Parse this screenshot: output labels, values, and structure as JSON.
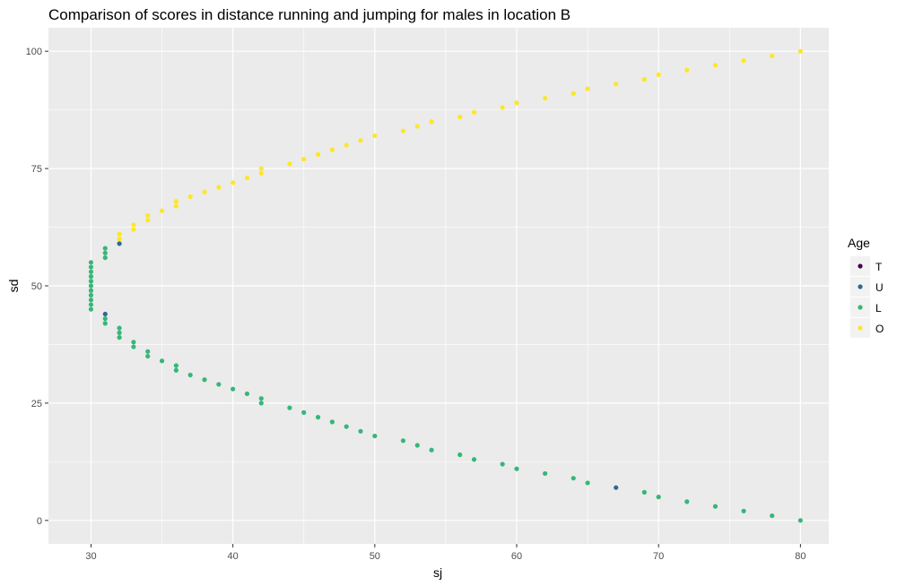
{
  "chart_data": {
    "type": "scatter",
    "title": "Comparison of scores in distance running and jumping for males in location B",
    "xlabel": "sj",
    "ylabel": "sd",
    "xlim": [
      27,
      82
    ],
    "ylim": [
      -5,
      105
    ],
    "x_ticks": [
      30,
      40,
      50,
      60,
      70,
      80
    ],
    "y_ticks": [
      0,
      25,
      50,
      75,
      100
    ],
    "grid": true,
    "legend": {
      "title": "Age",
      "position": "right",
      "entries": [
        "T",
        "U",
        "L",
        "O"
      ]
    },
    "series": [
      {
        "name": "T",
        "color": "#440154",
        "points": []
      },
      {
        "name": "U",
        "color": "#31688E",
        "points": [
          [
            31,
            44
          ],
          [
            32,
            59
          ],
          [
            67,
            7
          ]
        ]
      },
      {
        "name": "L",
        "color": "#35B779",
        "points": [
          [
            30,
            45
          ],
          [
            30,
            46
          ],
          [
            30,
            47
          ],
          [
            30,
            48
          ],
          [
            30,
            49
          ],
          [
            30,
            50
          ],
          [
            30,
            51
          ],
          [
            30,
            52
          ],
          [
            30,
            53
          ],
          [
            30,
            54
          ],
          [
            30,
            55
          ],
          [
            31,
            42
          ],
          [
            31,
            43
          ],
          [
            31,
            56
          ],
          [
            31,
            57
          ],
          [
            31,
            58
          ],
          [
            32,
            39
          ],
          [
            32,
            40
          ],
          [
            32,
            41
          ],
          [
            33,
            37
          ],
          [
            33,
            38
          ],
          [
            34,
            35
          ],
          [
            34,
            36
          ],
          [
            35,
            34
          ],
          [
            36,
            32
          ],
          [
            36,
            33
          ],
          [
            37,
            31
          ],
          [
            38,
            30
          ],
          [
            39,
            29
          ],
          [
            40,
            28
          ],
          [
            41,
            27
          ],
          [
            42,
            25
          ],
          [
            42,
            26
          ],
          [
            44,
            24
          ],
          [
            45,
            23
          ],
          [
            46,
            22
          ],
          [
            47,
            21
          ],
          [
            48,
            20
          ],
          [
            49,
            19
          ],
          [
            50,
            18
          ],
          [
            52,
            17
          ],
          [
            53,
            16
          ],
          [
            54,
            15
          ],
          [
            56,
            14
          ],
          [
            57,
            13
          ],
          [
            59,
            12
          ],
          [
            60,
            11
          ],
          [
            62,
            10
          ],
          [
            64,
            9
          ],
          [
            65,
            8
          ],
          [
            69,
            6
          ],
          [
            70,
            5
          ],
          [
            72,
            4
          ],
          [
            74,
            3
          ],
          [
            76,
            2
          ],
          [
            78,
            1
          ],
          [
            80,
            0
          ]
        ]
      },
      {
        "name": "O",
        "color": "#FDE725",
        "points": [
          [
            32,
            60
          ],
          [
            32,
            61
          ],
          [
            33,
            62
          ],
          [
            33,
            63
          ],
          [
            34,
            64
          ],
          [
            34,
            65
          ],
          [
            35,
            66
          ],
          [
            36,
            67
          ],
          [
            36,
            68
          ],
          [
            37,
            69
          ],
          [
            38,
            70
          ],
          [
            39,
            71
          ],
          [
            40,
            72
          ],
          [
            41,
            73
          ],
          [
            42,
            74
          ],
          [
            42,
            75
          ],
          [
            44,
            76
          ],
          [
            45,
            77
          ],
          [
            46,
            78
          ],
          [
            47,
            79
          ],
          [
            48,
            80
          ],
          [
            49,
            81
          ],
          [
            50,
            82
          ],
          [
            52,
            83
          ],
          [
            53,
            84
          ],
          [
            54,
            85
          ],
          [
            56,
            86
          ],
          [
            57,
            87
          ],
          [
            59,
            88
          ],
          [
            60,
            89
          ],
          [
            62,
            90
          ],
          [
            64,
            91
          ],
          [
            65,
            92
          ],
          [
            67,
            93
          ],
          [
            69,
            94
          ],
          [
            70,
            95
          ],
          [
            72,
            96
          ],
          [
            74,
            97
          ],
          [
            76,
            98
          ],
          [
            78,
            99
          ],
          [
            80,
            100
          ]
        ]
      }
    ]
  }
}
